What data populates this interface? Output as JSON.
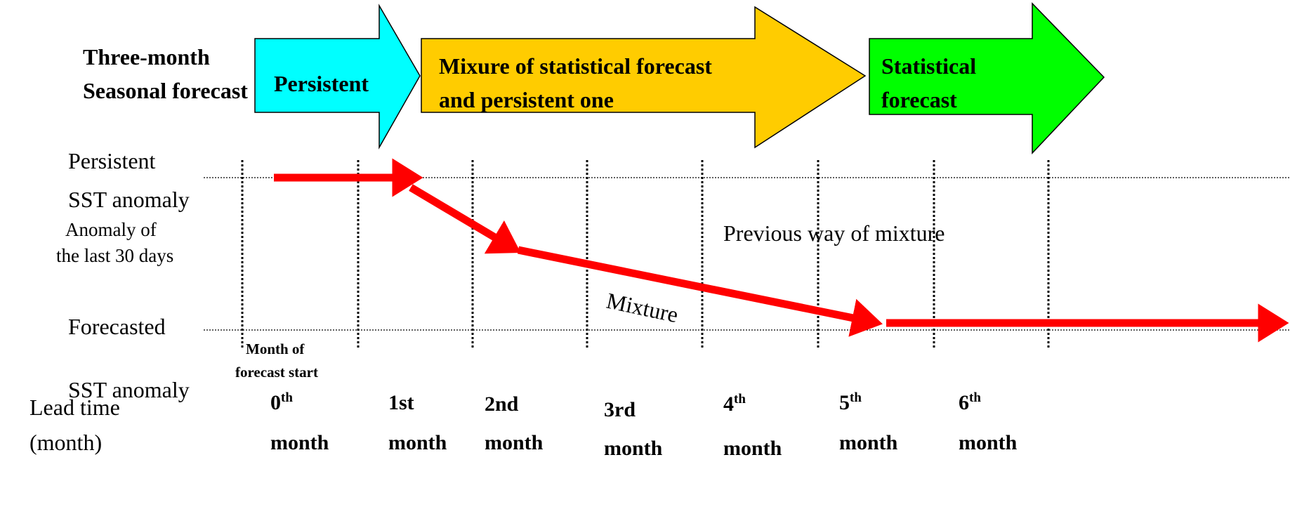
{
  "header": {
    "lines": [
      "Three-month",
      "Seasonal forecast"
    ]
  },
  "phases": [
    {
      "lines": [
        "Persistent"
      ]
    },
    {
      "lines": [
        "Mixure of statistical forecast",
        "and persistent one"
      ]
    },
    {
      "lines": [
        "Statistical",
        "forecast"
      ]
    }
  ],
  "levels": {
    "top": [
      "Persistent",
      "SST anomaly"
    ],
    "top_note": [
      "Anomaly of",
      "the last 30 days"
    ],
    "bottom": [
      "Forecasted",
      "SST anomaly"
    ]
  },
  "annotations": {
    "previous": "Previous way of mixture",
    "mixture": "Mixture",
    "start": [
      "Month of",
      "forecast start"
    ]
  },
  "axis_label": [
    "Lead time",
    "(month)"
  ],
  "leads": [
    {
      "main": "0",
      "sup": "th",
      "unit": "month"
    },
    {
      "main": "1st",
      "unit": "month"
    },
    {
      "main": "2nd",
      "unit": "month"
    },
    {
      "main": "3rd",
      "unit": "month"
    },
    {
      "main": "4",
      "sup": "th",
      "unit": "month"
    },
    {
      "main": "5",
      "sup": "th",
      "unit": "month"
    },
    {
      "main": "6",
      "sup": "th",
      "unit": "month"
    }
  ]
}
